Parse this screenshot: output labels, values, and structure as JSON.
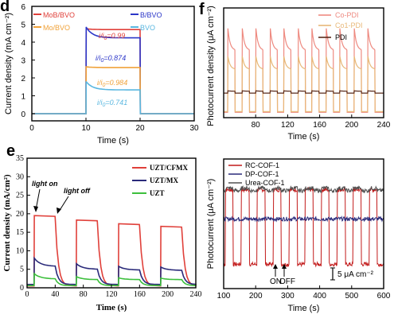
{
  "panel_labels": {
    "d": "d",
    "f": "f",
    "e": "e"
  },
  "colors": {
    "red": "#e0403a",
    "blue": "#2b36c8",
    "orange": "#f0a23a",
    "cyan": "#5ab7e0",
    "salmon": "#ee8a80",
    "tan": "#e8b878",
    "brown": "#5a2a1a",
    "green": "#3cbf3c",
    "darkred": "#c21a1a",
    "navy": "#2a2a7a",
    "gray": "#505050"
  },
  "chart_data": [
    {
      "id": "d",
      "type": "line",
      "xlabel": "Time (s)",
      "ylabel": "Current density (mA cm⁻²)",
      "xlim": [
        0,
        30
      ],
      "ylim": [
        -0.4,
        6
      ],
      "xticks": [
        0,
        10,
        20,
        30
      ],
      "yticks": [
        0,
        1,
        2,
        3,
        4,
        5,
        6
      ],
      "light_on": 10,
      "light_off": 20,
      "series": [
        {
          "name": "MoB/BVO",
          "color": "red",
          "on_start": 4.75,
          "on_end": 4.7,
          "ratio": "0.99"
        },
        {
          "name": "B/BVO",
          "color": "blue",
          "on_start": 4.85,
          "on_end": 4.24,
          "ratio": "0.874"
        },
        {
          "name": "Mo/BVO",
          "color": "orange",
          "on_start": 2.62,
          "on_end": 2.58,
          "ratio": "0.984"
        },
        {
          "name": "BVO",
          "color": "cyan",
          "on_start": 1.8,
          "on_end": 1.33,
          "ratio": "0.741"
        }
      ],
      "ratio_prefix_1": "i",
      "ratio_prefix_2": "/i",
      "ratio_sub": "0",
      "ratio_eq": "="
    },
    {
      "id": "f",
      "type": "line",
      "xlabel": "Time (s)",
      "ylabel": "Photocurrent density (μA cm⁻²)",
      "xlim": [
        40,
        240
      ],
      "xticks": [
        80,
        120,
        160,
        200,
        240
      ],
      "series": [
        {
          "name": "Co-PDI",
          "color": "salmon",
          "peak": 11.3,
          "plateau": 8.4,
          "dark": 0.2
        },
        {
          "name": "Co1-PDI",
          "color": "tan",
          "peak": 7.6,
          "plateau": 5.9,
          "dark": 0.3
        },
        {
          "name": "PDI",
          "color": "brown",
          "peak": 3.05,
          "plateau": 3.0,
          "dark": 2.75
        }
      ],
      "on_times": [
        45,
        63,
        80,
        98,
        115,
        133,
        150,
        168,
        185,
        203,
        220
      ]
    },
    {
      "id": "e",
      "type": "line",
      "xlabel": "Time (s)",
      "ylabel": "Current density (mA/cm²)",
      "xlim": [
        0,
        240
      ],
      "ylim": [
        0,
        35
      ],
      "xticks": [
        0,
        40,
        80,
        120,
        160,
        200,
        240
      ],
      "yticks": [
        0,
        5,
        10,
        15,
        20,
        25,
        30,
        35
      ],
      "annotation_on": "light on",
      "annotation_off": "light off",
      "on_times": [
        10,
        70,
        130,
        190
      ],
      "off_times": [
        40,
        100,
        160,
        220
      ],
      "series": [
        {
          "name": "UZT/CFMX",
          "color": "red",
          "plateaus": [
            19.5,
            18.3,
            17.3,
            16.6
          ],
          "dark": 0.5
        },
        {
          "name": "UZT/MX",
          "color": "navy",
          "peaks": [
            8.0,
            6.5,
            5.8,
            5.6
          ],
          "ends": [
            5.8,
            5.0,
            4.8,
            4.7
          ],
          "dark": 0.9
        },
        {
          "name": "UZT",
          "color": "green",
          "peaks": [
            3.8,
            3.0,
            2.7,
            2.6
          ],
          "ends": [
            2.4,
            2.2,
            2.2,
            2.2
          ],
          "dark": 0.6
        }
      ]
    },
    {
      "id": "g",
      "type": "line",
      "xlabel": "Time (s)",
      "ylabel": "Photocurrent (μA cm⁻²)",
      "xlim": [
        100,
        600
      ],
      "xticks": [
        100,
        200,
        300,
        400,
        500,
        600
      ],
      "on_label": "ON",
      "off_label": "OFF",
      "scale_label": "5 μA cm⁻²",
      "on_times": [
        105,
        155,
        205,
        255,
        305,
        355,
        405,
        455,
        505,
        555
      ],
      "series": [
        {
          "name": "RC-COF-1",
          "color": "darkred",
          "on": 12.2,
          "off": 3.0
        },
        {
          "name": "DP-COF-1",
          "color": "navy",
          "on": 8.6,
          "off": 8.6
        },
        {
          "name": "Urea-COF-1",
          "color": "gray",
          "on": 12.4,
          "off": 12.1
        }
      ]
    }
  ]
}
